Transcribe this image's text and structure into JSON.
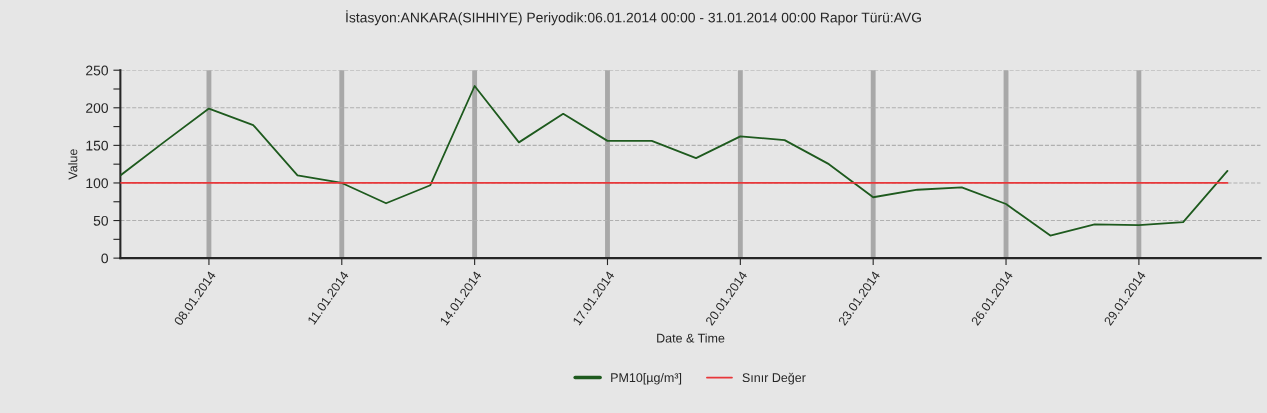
{
  "chart_data": {
    "type": "line",
    "title": "İstasyon:ANKARA(SIHHIYE) Periyodik:06.01.2014 00:00 - 31.01.2014 00:00 Rapor Türü:AVG",
    "xlabel": "Date & Time",
    "ylabel": "Value",
    "x": [
      "2014-01-06",
      "2014-01-07",
      "2014-01-08",
      "2014-01-09",
      "2014-01-10",
      "2014-01-11",
      "2014-01-12",
      "2014-01-13",
      "2014-01-14",
      "2014-01-15",
      "2014-01-16",
      "2014-01-17",
      "2014-01-18",
      "2014-01-19",
      "2014-01-20",
      "2014-01-21",
      "2014-01-22",
      "2014-01-23",
      "2014-01-24",
      "2014-01-25",
      "2014-01-26",
      "2014-01-27",
      "2014-01-28",
      "2014-01-29",
      "2014-01-30",
      "2014-01-31"
    ],
    "series": [
      {
        "name": "PM10[µg/m³]",
        "color": "#1e5a1e",
        "values": [
          110,
          155,
          199,
          177,
          110,
          100,
          73,
          97,
          229,
          154,
          192,
          156,
          156,
          133,
          162,
          157,
          125,
          81,
          91,
          94,
          72,
          30,
          45,
          44,
          48,
          116
        ]
      },
      {
        "name": "Sınır Değer",
        "color": "#e8373a",
        "values": [
          100,
          100,
          100,
          100,
          100,
          100,
          100,
          100,
          100,
          100,
          100,
          100,
          100,
          100,
          100,
          100,
          100,
          100,
          100,
          100,
          100,
          100,
          100,
          100,
          100,
          100
        ]
      }
    ],
    "xlim": [
      "2014-01-06",
      "2014-01-31T18:00"
    ],
    "xticks": [
      {
        "value": "2014-01-08",
        "label": "08.01.2014"
      },
      {
        "value": "2014-01-11",
        "label": "11.01.2014"
      },
      {
        "value": "2014-01-14",
        "label": "14.01.2014"
      },
      {
        "value": "2014-01-17",
        "label": "17.01.2014"
      },
      {
        "value": "2014-01-20",
        "label": "20.01.2014"
      },
      {
        "value": "2014-01-23",
        "label": "23.01.2014"
      },
      {
        "value": "2014-01-26",
        "label": "26.01.2014"
      },
      {
        "value": "2014-01-29",
        "label": "29.01.2014"
      }
    ],
    "ylim": [
      0,
      250
    ],
    "yticks": [
      0,
      {
        "value": 25,
        "label": null
      },
      50,
      {
        "value": 75,
        "label": null
      },
      100,
      {
        "value": 125,
        "label": null
      },
      150,
      {
        "value": 175,
        "label": null
      },
      200,
      {
        "value": 225,
        "label": null
      },
      250
    ],
    "grid": true,
    "legend": "bottom",
    "marker": "none",
    "line_style": "solid"
  }
}
